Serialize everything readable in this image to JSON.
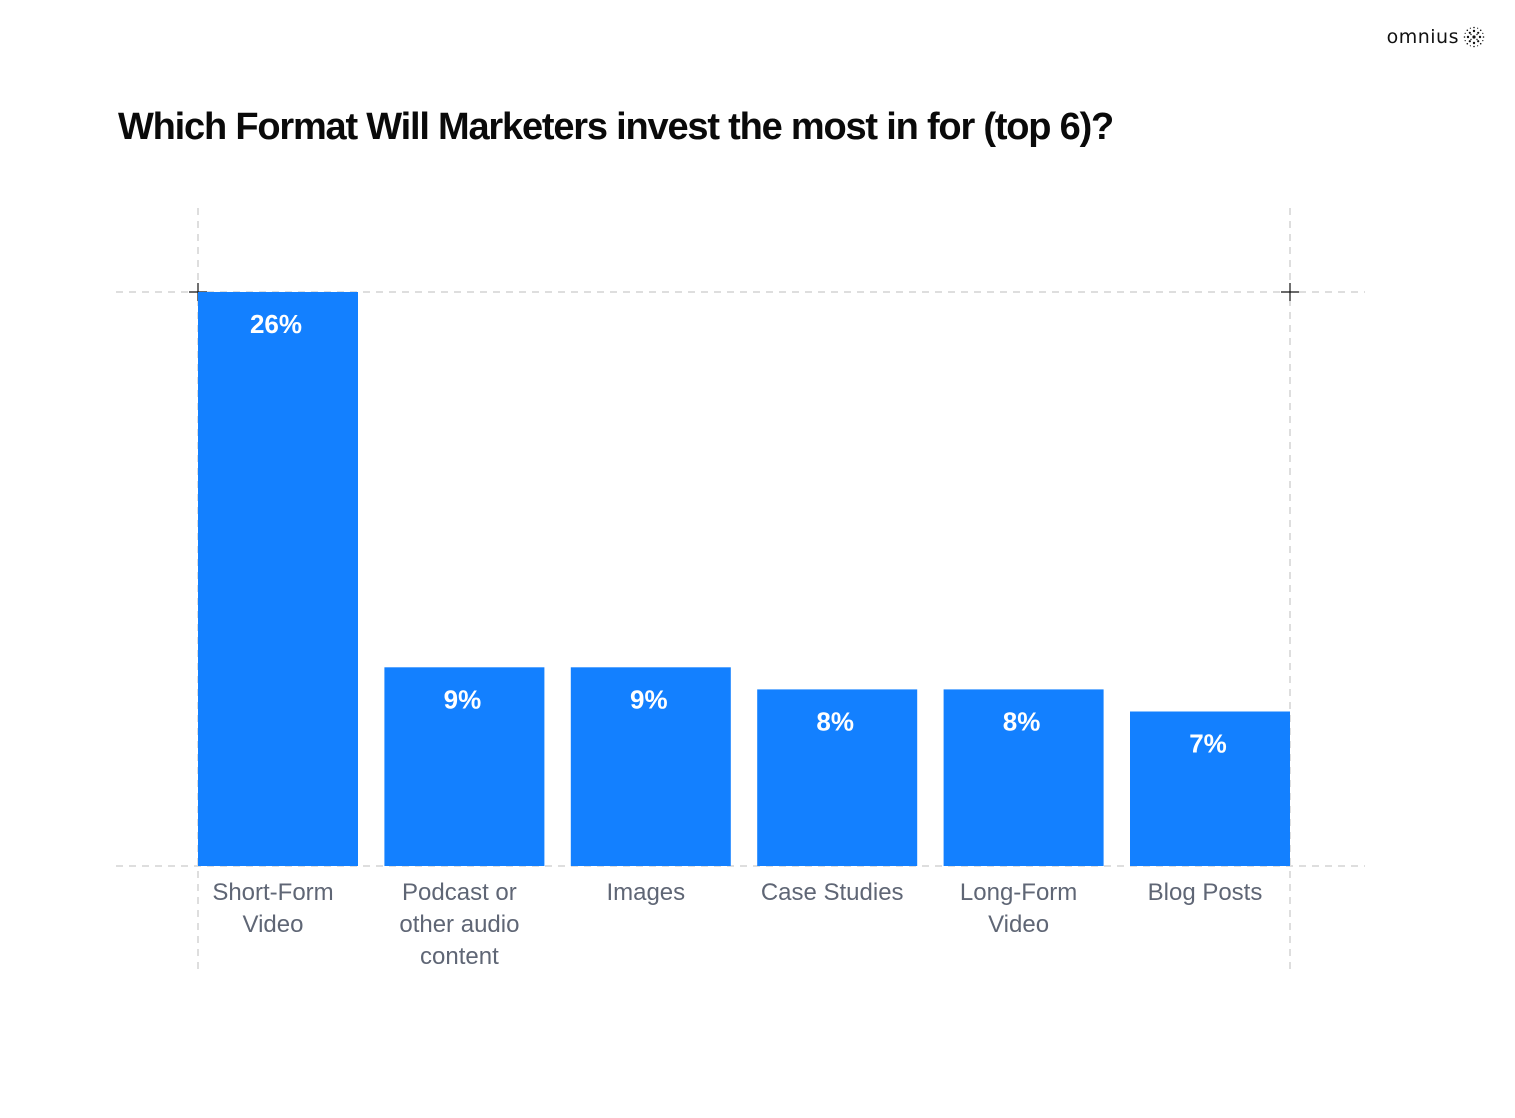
{
  "brand": {
    "name": "omnius",
    "icon": "dotted-sphere-icon"
  },
  "chart_data": {
    "type": "bar",
    "title": "Which Format Will Marketers invest the most in for (top 6)?",
    "categories": [
      [
        "Short-Form",
        "Video"
      ],
      [
        "Podcast or",
        "other audio",
        "content"
      ],
      [
        "Images"
      ],
      [
        "Case Studies"
      ],
      [
        "Long-Form",
        "Video"
      ],
      [
        "Blog Posts"
      ]
    ],
    "values": [
      26,
      9,
      9,
      8,
      8,
      7
    ],
    "value_labels": [
      "26%",
      "9%",
      "9%",
      "8%",
      "8%",
      "7%"
    ],
    "unit": "%",
    "ylim": [
      0,
      26
    ],
    "grid": true,
    "legend": "none",
    "colors": {
      "bar": "#1380FF",
      "value_text": "#FFFFFF",
      "category_text": "#5F6675",
      "grid": "#BDBDBD"
    }
  }
}
